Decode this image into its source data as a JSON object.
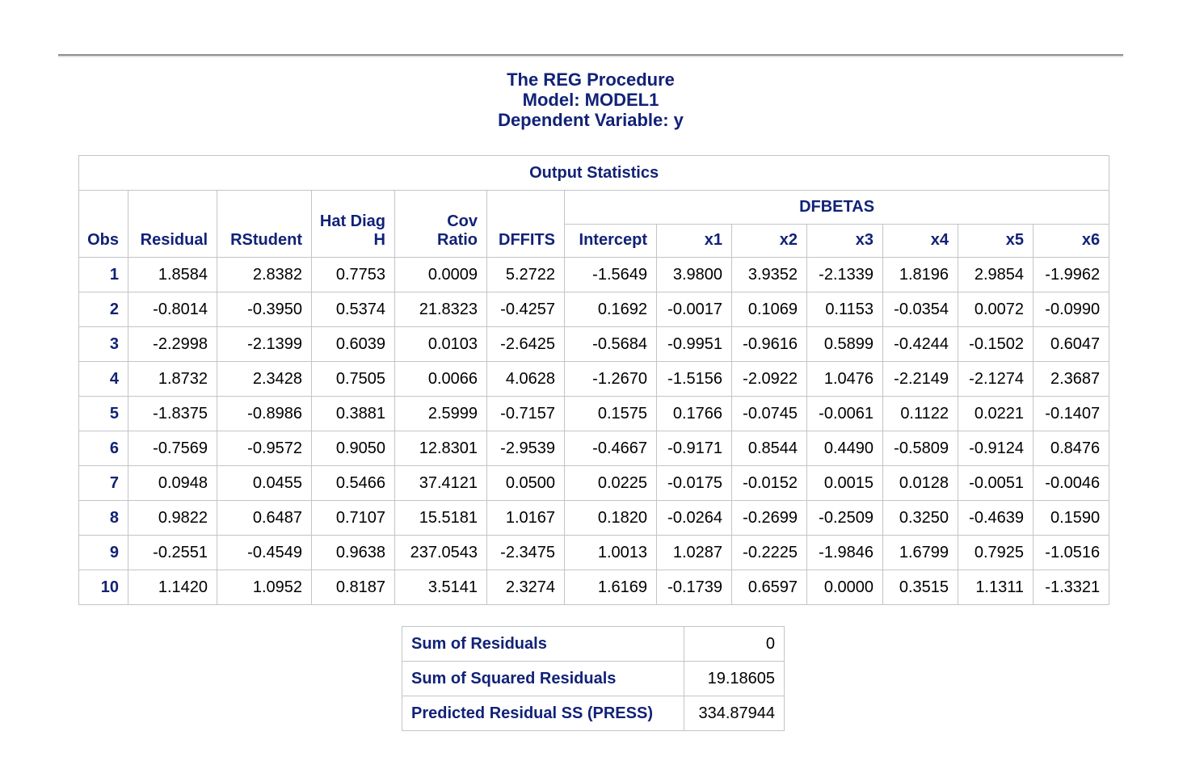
{
  "titles": [
    "The REG Procedure",
    "Model: MODEL1",
    "Dependent Variable: y"
  ],
  "output_statistics": {
    "caption": "Output Statistics",
    "headers": {
      "obs": "Obs",
      "residual": "Residual",
      "rstudent": "RStudent",
      "hat_diag": "Hat Diag\nH",
      "cov_ratio": "Cov\nRatio",
      "dffits": "DFFITS",
      "dfbetas": "DFBETAS",
      "dfbetas_cols": [
        "Intercept",
        "x1",
        "x2",
        "x3",
        "x4",
        "x5",
        "x6"
      ]
    },
    "rows": [
      {
        "obs": "1",
        "values": [
          "1.8584",
          "2.8382",
          "0.7753",
          "0.0009",
          "5.2722",
          "-1.5649",
          "3.9800",
          "3.9352",
          "-2.1339",
          "1.8196",
          "2.9854",
          "-1.9962"
        ]
      },
      {
        "obs": "2",
        "values": [
          "-0.8014",
          "-0.3950",
          "0.5374",
          "21.8323",
          "-0.4257",
          "0.1692",
          "-0.0017",
          "0.1069",
          "0.1153",
          "-0.0354",
          "0.0072",
          "-0.0990"
        ]
      },
      {
        "obs": "3",
        "values": [
          "-2.2998",
          "-2.1399",
          "0.6039",
          "0.0103",
          "-2.6425",
          "-0.5684",
          "-0.9951",
          "-0.9616",
          "0.5899",
          "-0.4244",
          "-0.1502",
          "0.6047"
        ]
      },
      {
        "obs": "4",
        "values": [
          "1.8732",
          "2.3428",
          "0.7505",
          "0.0066",
          "4.0628",
          "-1.2670",
          "-1.5156",
          "-2.0922",
          "1.0476",
          "-2.2149",
          "-2.1274",
          "2.3687"
        ]
      },
      {
        "obs": "5",
        "values": [
          "-1.8375",
          "-0.8986",
          "0.3881",
          "2.5999",
          "-0.7157",
          "0.1575",
          "0.1766",
          "-0.0745",
          "-0.0061",
          "0.1122",
          "0.0221",
          "-0.1407"
        ]
      },
      {
        "obs": "6",
        "values": [
          "-0.7569",
          "-0.9572",
          "0.9050",
          "12.8301",
          "-2.9539",
          "-0.4667",
          "-0.9171",
          "0.8544",
          "0.4490",
          "-0.5809",
          "-0.9124",
          "0.8476"
        ]
      },
      {
        "obs": "7",
        "values": [
          "0.0948",
          "0.0455",
          "0.5466",
          "37.4121",
          "0.0500",
          "0.0225",
          "-0.0175",
          "-0.0152",
          "0.0015",
          "0.0128",
          "-0.0051",
          "-0.0046"
        ]
      },
      {
        "obs": "8",
        "values": [
          "0.9822",
          "0.6487",
          "0.7107",
          "15.5181",
          "1.0167",
          "0.1820",
          "-0.0264",
          "-0.2699",
          "-0.2509",
          "0.3250",
          "-0.4639",
          "0.1590"
        ]
      },
      {
        "obs": "9",
        "values": [
          "-0.2551",
          "-0.4549",
          "0.9638",
          "237.0543",
          "-2.3475",
          "1.0013",
          "1.0287",
          "-0.2225",
          "-1.9846",
          "1.6799",
          "0.7925",
          "-1.0516"
        ]
      },
      {
        "obs": "10",
        "values": [
          "1.1420",
          "1.0952",
          "0.8187",
          "3.5141",
          "2.3274",
          "1.6169",
          "-0.1739",
          "0.6597",
          "0.0000",
          "0.3515",
          "1.1311",
          "-1.3321"
        ]
      }
    ]
  },
  "summary": {
    "rows": [
      {
        "label": "Sum of Residuals",
        "value": "0"
      },
      {
        "label": "Sum of Squared Residuals",
        "value": "19.18605"
      },
      {
        "label": "Predicted Residual SS (PRESS)",
        "value": "334.87944"
      }
    ]
  },
  "colors": {
    "heading_text": "#112277",
    "data_text": "#000000",
    "table_border": "#c1c5c8",
    "separator_rule": "#8f8f8f",
    "background": "#ffffff"
  }
}
